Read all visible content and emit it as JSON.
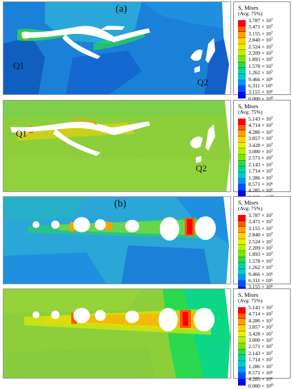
{
  "subfigure_labels": {
    "a": "(a)",
    "b": "(b)"
  },
  "legend_title": "S, Mises",
  "legend_subtitle": "(Avg: 75%)",
  "scale_low": [
    "3.787 × 10⁷",
    "3.471 × 10⁷",
    "3.155 × 10⁷",
    "2.840 × 10⁷",
    "2.524 × 10⁷",
    "2.209 × 10⁷",
    "1.893 × 10⁷",
    "1.578 × 10⁷",
    "1.262 × 10⁷",
    "9.466 × 10⁶",
    "6.311 × 10⁶",
    "3.155 × 10⁶",
    "0.000 × 10⁰"
  ],
  "scale_high": [
    "5.143 × 10⁷",
    "4.714 × 10⁷",
    "4.286 × 10⁷",
    "3.857 × 10⁷",
    "3.428 × 10⁷",
    "3.000 × 10⁷",
    "2.571 × 10⁷",
    "2.143 × 10⁷",
    "1.714 × 10⁷",
    "1.286 × 10⁷",
    "8.571 × 10⁶",
    "4.285 × 10⁶",
    "0.000 × 10⁰"
  ],
  "contour_colors": [
    "#ff0000",
    "#ff5a00",
    "#ffa000",
    "#ffd200",
    "#e6f000",
    "#b4f000",
    "#78e600",
    "#2ad94e",
    "#00d6a0",
    "#00c8dc",
    "#0096ff",
    "#0050ff",
    "#0000ff"
  ],
  "point_labels": {
    "q1": "Q1",
    "q2": "Q2"
  }
}
